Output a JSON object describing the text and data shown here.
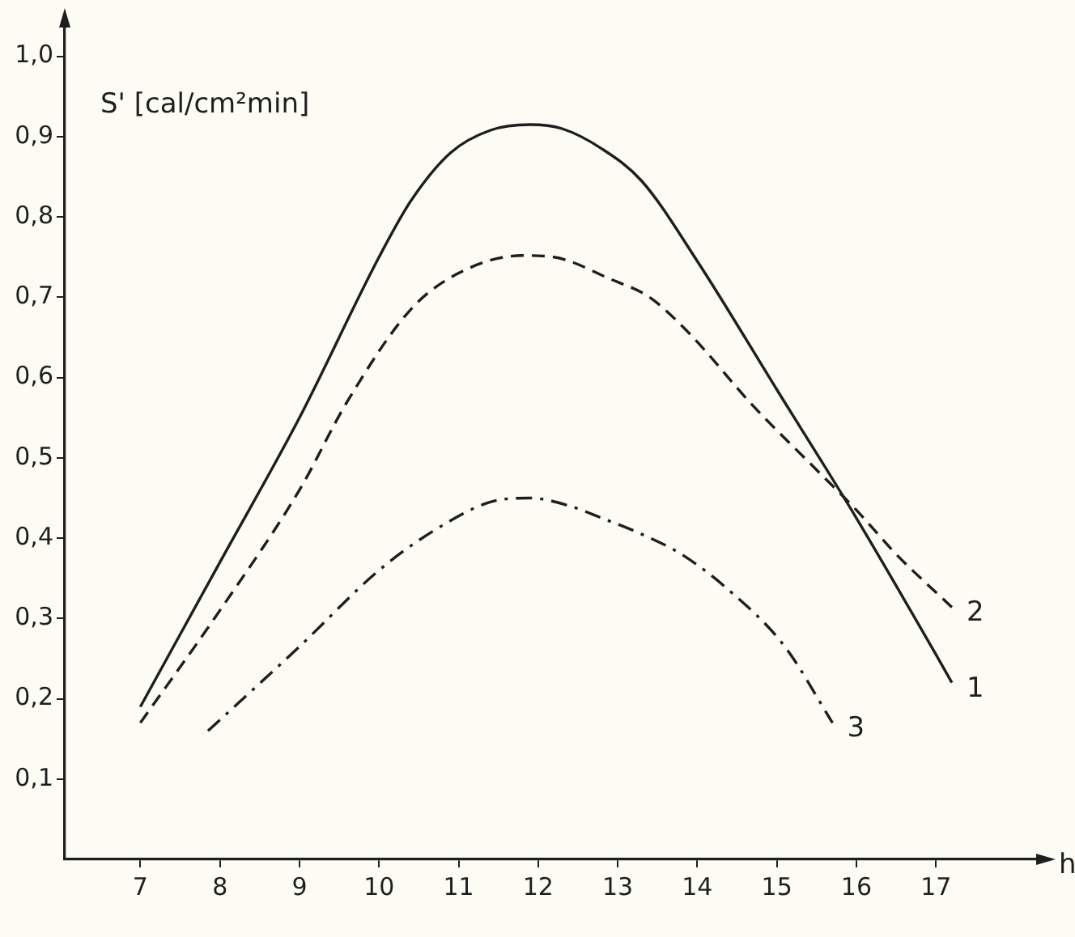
{
  "chart_data": {
    "type": "line",
    "xlabel": "h",
    "ylabel": "S' [cal/cm²min]",
    "xlim": [
      6.05,
      18.3
    ],
    "ylim": [
      0,
      1.04
    ],
    "xticks": [
      7,
      8,
      9,
      10,
      11,
      12,
      13,
      14,
      15,
      16,
      17
    ],
    "yticks": [
      {
        "value": 0.1,
        "label": "0,1"
      },
      {
        "value": 0.2,
        "label": "0,2"
      },
      {
        "value": 0.3,
        "label": "0,3"
      },
      {
        "value": 0.4,
        "label": "0,4"
      },
      {
        "value": 0.5,
        "label": "0,5"
      },
      {
        "value": 0.6,
        "label": "0,6"
      },
      {
        "value": 0.7,
        "label": "0,7"
      },
      {
        "value": 0.8,
        "label": "0,8"
      },
      {
        "value": 0.9,
        "label": "0,9"
      },
      {
        "value": 1.0,
        "label": "1,0"
      }
    ],
    "grid": false,
    "legend": false,
    "marker": "none",
    "series": [
      {
        "name": "1",
        "color": "#1e1e1e",
        "line_style": "solid",
        "x": [
          7,
          8,
          9,
          10,
          10.4,
          10.9,
          11.4,
          11.9,
          12.3,
          12.8,
          13.3,
          14,
          15,
          16,
          17,
          17.2
        ],
        "values": [
          0.19,
          0.37,
          0.55,
          0.75,
          0.82,
          0.88,
          0.908,
          0.915,
          0.91,
          0.885,
          0.845,
          0.745,
          0.585,
          0.425,
          0.255,
          0.22
        ]
      },
      {
        "name": "2",
        "color": "#1e1e1e",
        "line_style": "dashed",
        "x": [
          7,
          8,
          9,
          9.6,
          10.4,
          11,
          11.8,
          12.2,
          12.9,
          13.4,
          13.9,
          14.7,
          15.5,
          16,
          16.5,
          17.2
        ],
        "values": [
          0.17,
          0.31,
          0.46,
          0.57,
          0.685,
          0.73,
          0.752,
          0.75,
          0.723,
          0.7,
          0.655,
          0.565,
          0.485,
          0.435,
          0.38,
          0.314
        ]
      },
      {
        "name": "3",
        "color": "#1e1e1e",
        "line_style": "dashdot",
        "x": [
          7.85,
          9,
          10,
          10.7,
          11.4,
          11.9,
          12.4,
          12.8,
          13.3,
          13.8,
          14.4,
          15.1,
          15.7
        ],
        "values": [
          0.16,
          0.265,
          0.36,
          0.41,
          0.445,
          0.45,
          0.44,
          0.425,
          0.405,
          0.38,
          0.335,
          0.265,
          0.17
        ]
      }
    ]
  }
}
